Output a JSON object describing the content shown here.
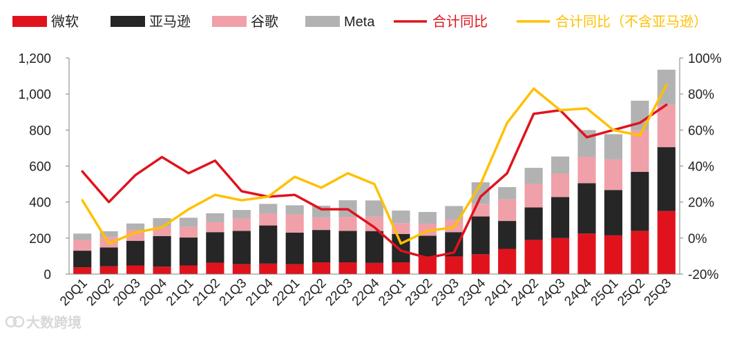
{
  "chart_data": {
    "type": "bar",
    "stacked": true,
    "categories": [
      "20Q1",
      "20Q2",
      "20Q3",
      "20Q4",
      "21Q1",
      "21Q2",
      "21Q3",
      "21Q4",
      "22Q1",
      "22Q2",
      "22Q3",
      "22Q4",
      "23Q1",
      "23Q2",
      "23Q3",
      "23Q4",
      "24Q1",
      "24Q2",
      "24Q3",
      "24Q4",
      "25Q1",
      "25Q2",
      "25Q3"
    ],
    "series": [
      {
        "name": "微软",
        "type": "bar",
        "axis": "left",
        "color": "#e0131d",
        "values": [
          38,
          43,
          48,
          41,
          48,
          63,
          55,
          58,
          55,
          65,
          65,
          62,
          65,
          93,
          98,
          110,
          140,
          190,
          200,
          225,
          215,
          240,
          350
        ]
      },
      {
        "name": "亚马逊",
        "type": "bar",
        "axis": "left",
        "color": "#262626",
        "values": [
          92,
          105,
          137,
          170,
          155,
          170,
          185,
          212,
          175,
          180,
          175,
          177,
          158,
          120,
          135,
          210,
          155,
          180,
          228,
          280,
          252,
          328,
          355
        ]
      },
      {
        "name": "谷歌",
        "type": "bar",
        "axis": "left",
        "color": "#f0a0a8",
        "values": [
          60,
          58,
          60,
          50,
          60,
          55,
          68,
          65,
          100,
          70,
          78,
          80,
          60,
          67,
          70,
          70,
          120,
          130,
          130,
          145,
          170,
          230,
          235
        ]
      },
      {
        "name": "Meta",
        "type": "bar",
        "axis": "left",
        "color": "#b2b2b2",
        "values": [
          35,
          32,
          36,
          50,
          50,
          50,
          48,
          55,
          52,
          65,
          92,
          90,
          70,
          65,
          75,
          120,
          68,
          90,
          95,
          150,
          140,
          165,
          195
        ]
      },
      {
        "name": "合计同比",
        "type": "line",
        "axis": "right",
        "color": "#e0131d",
        "values": [
          37,
          20,
          35,
          45,
          36,
          43,
          26,
          23,
          24,
          16,
          16,
          6,
          -7,
          -11,
          -8,
          23,
          36,
          69,
          71,
          56,
          60,
          64,
          74
        ]
      },
      {
        "name": "合计同比（不含亚马逊）",
        "type": "line",
        "axis": "right",
        "color": "#ffc000",
        "values": [
          21,
          -3,
          3,
          6,
          16,
          24,
          21,
          23,
          34,
          28,
          36,
          30,
          -3,
          4,
          6,
          30,
          64,
          83,
          71,
          72,
          60,
          57,
          85
        ]
      }
    ],
    "y_left": {
      "min": 0,
      "max": 1200,
      "step": 200,
      "tick_labels": [
        "0",
        "200",
        "400",
        "600",
        "800",
        "1,000",
        "1,200"
      ]
    },
    "y_right": {
      "min": -20,
      "max": 100,
      "step": 20,
      "tick_labels": [
        "-20%",
        "0%",
        "20%",
        "40%",
        "60%",
        "80%",
        "100%"
      ]
    },
    "legend_position": "top",
    "grid": false
  },
  "watermark": {
    "text": "大数跨境"
  }
}
